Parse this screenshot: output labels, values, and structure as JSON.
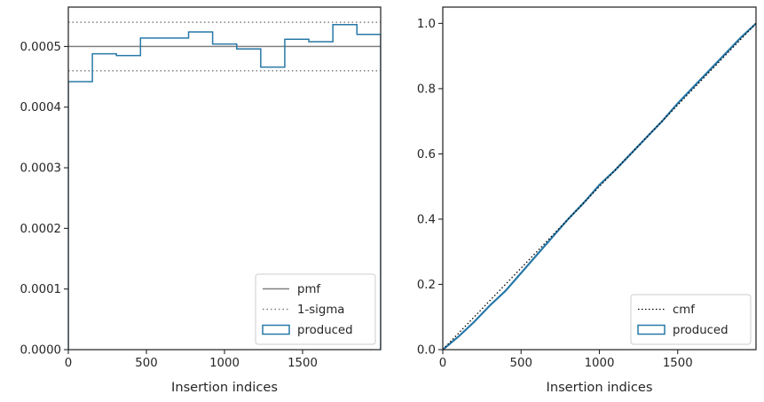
{
  "chart_data": [
    {
      "type": "step",
      "xlabel": "Insertion indices",
      "xlim": [
        0,
        2000
      ],
      "ylim": [
        0,
        0.000565
      ],
      "xticks": [
        0,
        500,
        1000,
        1500
      ],
      "xtick_labels": [
        "0",
        "500",
        "1000",
        "1500"
      ],
      "yticks": [
        0,
        0.0001,
        0.0002,
        0.0003,
        0.0004,
        0.0005
      ],
      "ytick_labels": [
        "0.0000",
        "0.0001",
        "0.0002",
        "0.0003",
        "0.0004",
        "0.0005"
      ],
      "grid": false,
      "legend_position": "lower-right",
      "legend": [
        "pmf",
        "1-sigma",
        "produced"
      ],
      "pmf": 0.0005,
      "sigma_band": [
        0.00046,
        0.00054
      ],
      "produced_hist": {
        "bin_edges": [
          0,
          154,
          308,
          462,
          616,
          770,
          924,
          1078,
          1232,
          1386,
          1540,
          1694,
          1848,
          2000
        ],
        "values": [
          0.000442,
          0.000488,
          0.000485,
          0.000514,
          0.000514,
          0.000524,
          0.000504,
          0.000496,
          0.000466,
          0.000512,
          0.000508,
          0.000536,
          0.00052
        ]
      },
      "colors": {
        "pmf": "#808080",
        "sigma": "#808080",
        "produced": "#2878a8"
      }
    },
    {
      "type": "line",
      "xlabel": "Insertion indices",
      "xlim": [
        0,
        2000
      ],
      "ylim": [
        0,
        1.05
      ],
      "xticks": [
        0,
        500,
        1000,
        1500
      ],
      "xtick_labels": [
        "0",
        "500",
        "1000",
        "1500"
      ],
      "yticks": [
        0,
        0.2,
        0.4,
        0.6,
        0.8,
        1.0
      ],
      "ytick_labels": [
        "0.0",
        "0.2",
        "0.4",
        "0.6",
        "0.8",
        "1.0"
      ],
      "grid": false,
      "legend_position": "lower-right",
      "legend": [
        "cmf",
        "produced"
      ],
      "cmf": {
        "x": [
          0,
          2000
        ],
        "y": [
          0,
          1
        ]
      },
      "produced": {
        "x": [
          0,
          100,
          200,
          300,
          400,
          500,
          600,
          700,
          800,
          900,
          1000,
          1100,
          1200,
          1300,
          1400,
          1500,
          1600,
          1700,
          1800,
          1900,
          2000
        ],
        "y": [
          0,
          0.04,
          0.085,
          0.135,
          0.18,
          0.235,
          0.29,
          0.345,
          0.4,
          0.45,
          0.505,
          0.55,
          0.6,
          0.65,
          0.7,
          0.755,
          0.805,
          0.855,
          0.905,
          0.955,
          1.0
        ]
      },
      "colors": {
        "cmf": "#000000",
        "produced": "#2878a8"
      }
    }
  ]
}
